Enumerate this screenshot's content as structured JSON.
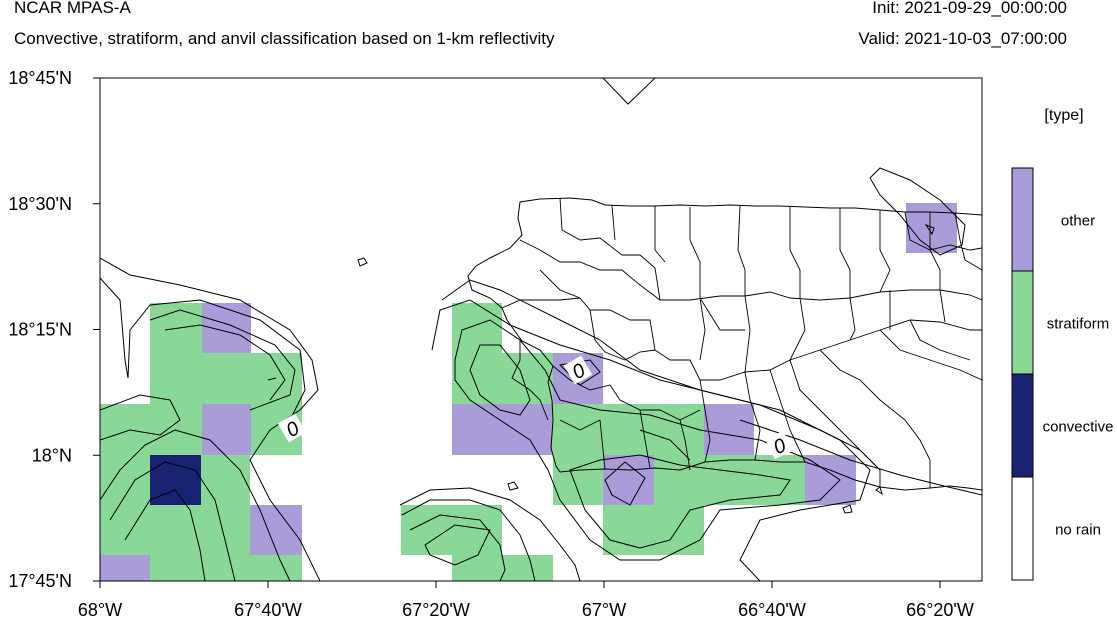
{
  "header": {
    "title": "NCAR MPAS-A",
    "subtitle": "Convective, stratiform, and anvil classification based on 1-km reflectivity",
    "init": "Init: 2021-09-29_00:00:00",
    "valid": "Valid: 2021-10-03_07:00:00"
  },
  "map": {
    "lon_range": [
      -68.0,
      -66.25
    ],
    "lat_range": [
      17.75,
      18.75
    ],
    "x_ticks": [
      {
        "value": -68.0,
        "label": "68°W"
      },
      {
        "value": -67.6667,
        "label": "67°40'W"
      },
      {
        "value": -67.3333,
        "label": "67°20'W"
      },
      {
        "value": -67.0,
        "label": "67°W"
      },
      {
        "value": -66.6667,
        "label": "66°40'W"
      },
      {
        "value": -66.3333,
        "label": "66°20'W"
      }
    ],
    "y_ticks": [
      {
        "value": 18.75,
        "label": "18°45'N"
      },
      {
        "value": 18.5,
        "label": "18°30'N"
      },
      {
        "value": 18.25,
        "label": "18°15'N"
      },
      {
        "value": 18.0,
        "label": "18°N"
      },
      {
        "value": 17.75,
        "label": "17°45'N"
      }
    ],
    "contour_labels": [
      "0",
      "0",
      "0"
    ]
  },
  "legend": {
    "title": "[type]",
    "items": [
      {
        "label": "other",
        "color": "#a99cd8"
      },
      {
        "label": "stratiform",
        "color": "#8ad897"
      },
      {
        "label": "convective",
        "color": "#1a2371"
      },
      {
        "label": "no rain",
        "color": "#ffffff"
      }
    ]
  }
}
